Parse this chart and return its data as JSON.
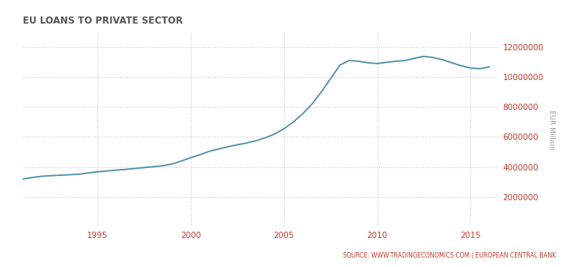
{
  "title": "EU LOANS TO PRIVATE SECTOR",
  "ylabel": "EUR Million",
  "source_text": "SOURCE: WWW.TRADINGECONOMICS.COM | EUROPEAN CENTRAL BANK",
  "line_color": "#4a8fa8",
  "background_color": "#ffffff",
  "grid_color": "#c8c8c8",
  "title_color": "#555555",
  "source_color": "#c0392b",
  "ylabel_color": "#999999",
  "tick_color": "#c0392b",
  "xlim": [
    1991.0,
    2016.5
  ],
  "ylim": [
    0,
    13000000
  ],
  "yticks": [
    2000000,
    4000000,
    6000000,
    8000000,
    10000000,
    12000000
  ],
  "xticks": [
    1995,
    2000,
    2005,
    2010,
    2015
  ],
  "years": [
    1991.0,
    1991.5,
    1992.0,
    1992.5,
    1993.0,
    1993.5,
    1994.0,
    1994.5,
    1995.0,
    1995.5,
    1996.0,
    1996.5,
    1997.0,
    1997.5,
    1998.0,
    1998.5,
    1999.0,
    1999.5,
    2000.0,
    2000.5,
    2001.0,
    2001.5,
    2002.0,
    2002.5,
    2003.0,
    2003.5,
    2004.0,
    2004.5,
    2005.0,
    2005.5,
    2006.0,
    2006.5,
    2007.0,
    2007.5,
    2008.0,
    2008.5,
    2009.0,
    2009.5,
    2010.0,
    2010.5,
    2011.0,
    2011.5,
    2012.0,
    2012.5,
    2013.0,
    2013.5,
    2014.0,
    2014.5,
    2015.0,
    2015.5,
    2016.0
  ],
  "values": [
    3200000,
    3300000,
    3380000,
    3420000,
    3450000,
    3480000,
    3520000,
    3600000,
    3680000,
    3730000,
    3790000,
    3840000,
    3900000,
    3960000,
    4020000,
    4080000,
    4200000,
    4400000,
    4620000,
    4820000,
    5050000,
    5200000,
    5350000,
    5480000,
    5600000,
    5750000,
    5950000,
    6200000,
    6550000,
    7000000,
    7550000,
    8200000,
    9000000,
    9900000,
    10800000,
    11100000,
    11050000,
    10950000,
    10900000,
    10980000,
    11050000,
    11100000,
    11250000,
    11380000,
    11300000,
    11150000,
    10950000,
    10750000,
    10600000,
    10550000,
    10680000
  ]
}
